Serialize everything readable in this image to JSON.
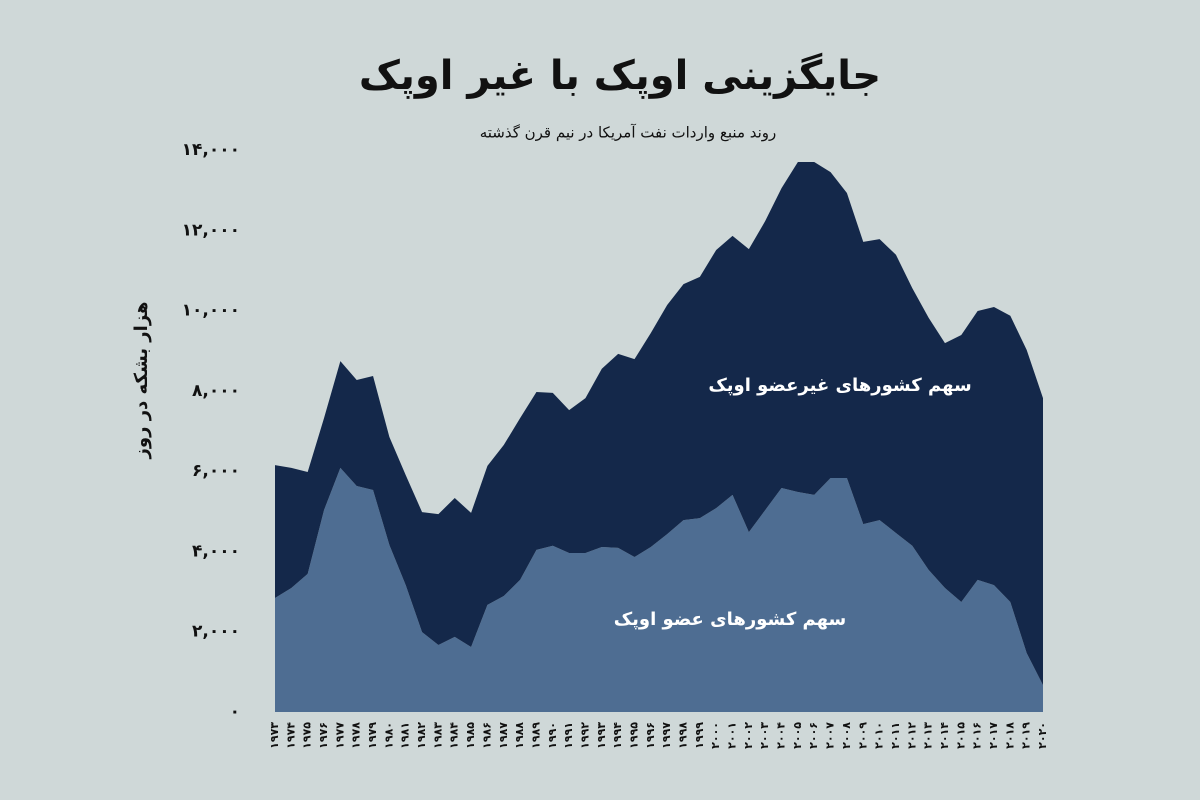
{
  "chart_data": {
    "type": "stacked-area",
    "title": "جایگزینی اوپک با غیر اوپک",
    "subtitle": "روند منبع واردات نفت آمریکا در نیم قرن گذشته",
    "y_label": "هزار بشکه در روز",
    "categories": [
      "۱۹۷۳",
      "۱۹۷۴",
      "۱۹۷۵",
      "۱۹۷۶",
      "۱۹۷۷",
      "۱۹۷۸",
      "۱۹۷۹",
      "۱۹۸۰",
      "۱۹۸۱",
      "۱۹۸۲",
      "۱۹۸۳",
      "۱۹۸۴",
      "۱۹۸۵",
      "۱۹۸۶",
      "۱۹۸۷",
      "۱۹۸۸",
      "۱۹۸۹",
      "۱۹۹۰",
      "۱۹۹۱",
      "۱۹۹۲",
      "۱۹۹۳",
      "۱۹۹۴",
      "۱۹۹۵",
      "۱۹۹۶",
      "۱۹۹۷",
      "۱۹۹۸",
      "۱۹۹۹",
      "۲۰۰۰",
      "۲۰۰۱",
      "۲۰۰۲",
      "۲۰۰۳",
      "۲۰۰۴",
      "۲۰۰۵",
      "۲۰۰۶",
      "۲۰۰۷",
      "۲۰۰۸",
      "۲۰۰۹",
      "۲۰۱۰",
      "۲۰۱۱",
      "۲۰۱۲",
      "۲۰۱۳",
      "۲۰۱۴",
      "۲۰۱۵",
      "۲۰۱۶",
      "۲۰۱۷",
      "۲۰۱۸",
      "۲۰۱۹",
      "۲۰۲۰"
    ],
    "series": [
      {
        "name": "سهم کشورهای عضو اوپک",
        "color": "#4e6d92",
        "values": [
          2840,
          3090,
          3440,
          5030,
          6080,
          5630,
          5530,
          4160,
          3160,
          1990,
          1670,
          1870,
          1620,
          2670,
          2890,
          3290,
          4040,
          4140,
          3960,
          3960,
          4110,
          4090,
          3860,
          4110,
          4430,
          4780,
          4830,
          5080,
          5410,
          4480,
          5030,
          5580,
          5480,
          5410,
          5830,
          5830,
          4680,
          4780,
          4460,
          4140,
          3540,
          3090,
          2740,
          3290,
          3160,
          2740,
          1470,
          670
        ]
      },
      {
        "name": "سهم کشورهای غیرعضو اوپک",
        "color": "#14284a",
        "values": [
          3310,
          2990,
          2540,
          2290,
          2660,
          2640,
          2840,
          2690,
          2740,
          2990,
          3260,
          3460,
          3340,
          3460,
          3760,
          4030,
          3930,
          3810,
          3560,
          3860,
          4440,
          4830,
          4930,
          5330,
          5710,
          5880,
          6010,
          6430,
          6450,
          7050,
          7200,
          7470,
          8220,
          8290,
          7620,
          7100,
          7030,
          7000,
          6930,
          6420,
          6280,
          6100,
          6650,
          6700,
          6930,
          7130,
          7550,
          7150
        ]
      }
    ],
    "ylim": [
      0,
      14000
    ],
    "yticks": [
      {
        "value": 0,
        "label": "۰"
      },
      {
        "value": 2000,
        "label": "۲,۰۰۰"
      },
      {
        "value": 4000,
        "label": "۴,۰۰۰"
      },
      {
        "value": 6000,
        "label": "۶,۰۰۰"
      },
      {
        "value": 8000,
        "label": "۸,۰۰۰"
      },
      {
        "value": 10000,
        "label": "۱۰,۰۰۰"
      },
      {
        "value": 12000,
        "label": "۱۲,۰۰۰"
      },
      {
        "value": 14000,
        "label": "۱۴,۰۰۰"
      }
    ],
    "grid": false
  }
}
